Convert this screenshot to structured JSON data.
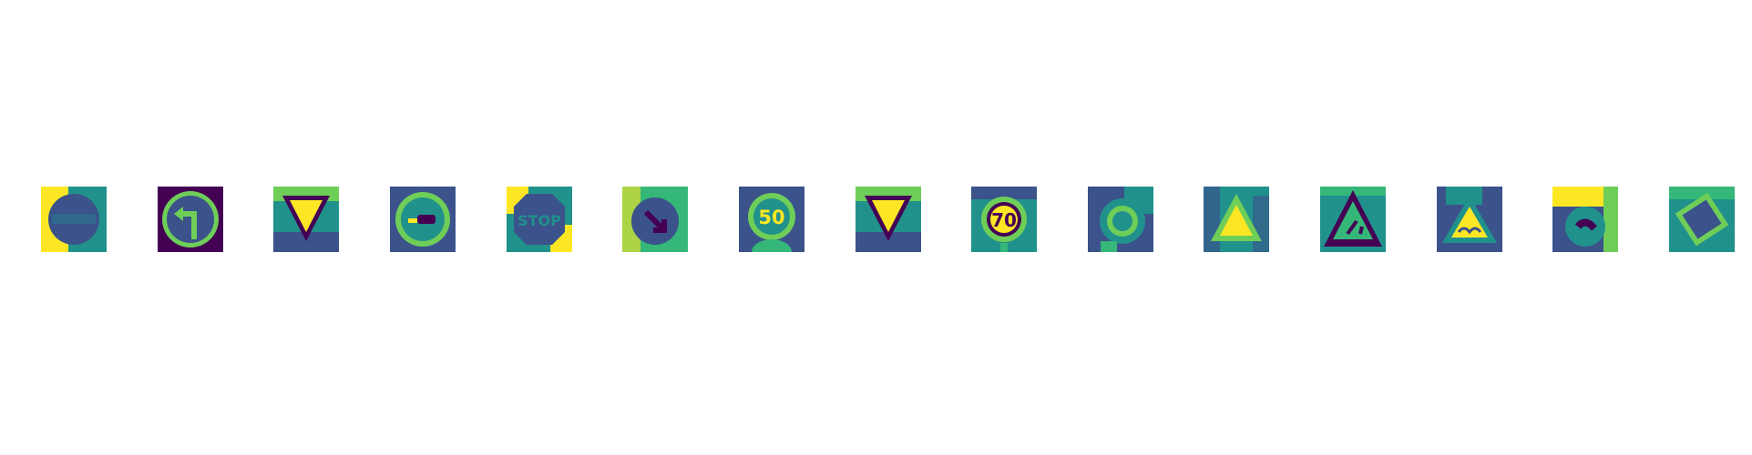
{
  "figure": {
    "palette": {
      "dark": "#440154",
      "deep_blue": "#3b528b",
      "blue": "#31688e",
      "teal": "#21918c",
      "green": "#35b779",
      "light_green": "#6ece58",
      "yellow": "#fde725"
    },
    "tiles": [
      {
        "sign": "no-entry",
        "icon": "no-entry-sign-icon"
      },
      {
        "sign": "turn-left-ahead",
        "icon": "turn-left-arrow-sign-icon"
      },
      {
        "sign": "yield",
        "icon": "yield-triangle-sign-icon"
      },
      {
        "sign": "no-passing",
        "icon": "no-passing-sign-icon"
      },
      {
        "sign": "stop",
        "icon": "stop-sign-icon",
        "text": "STOP"
      },
      {
        "sign": "keep-right",
        "icon": "keep-right-sign-icon"
      },
      {
        "sign": "speed-limit-50",
        "icon": "speed-limit-sign-icon",
        "text": "50"
      },
      {
        "sign": "yield",
        "icon": "yield-triangle-sign-icon"
      },
      {
        "sign": "speed-limit-70",
        "icon": "speed-limit-sign-icon",
        "text": "70"
      },
      {
        "sign": "roundabout",
        "icon": "roundabout-sign-icon"
      },
      {
        "sign": "general-caution",
        "icon": "warning-triangle-sign-icon"
      },
      {
        "sign": "road-work",
        "icon": "road-work-sign-icon"
      },
      {
        "sign": "bumpy-road",
        "icon": "bumpy-road-sign-icon"
      },
      {
        "sign": "end-of-restriction",
        "icon": "circular-sign-icon"
      },
      {
        "sign": "priority-road",
        "icon": "priority-road-sign-icon"
      }
    ]
  }
}
